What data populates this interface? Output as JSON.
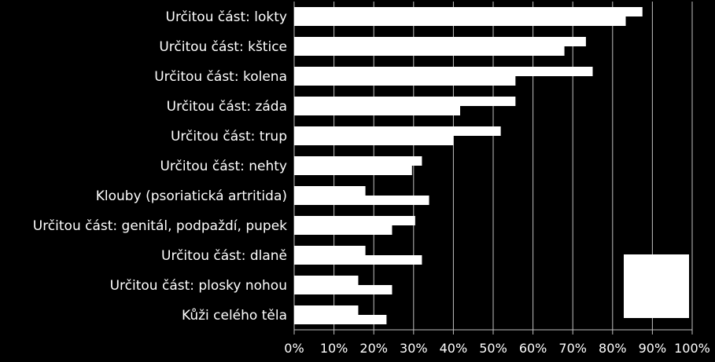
{
  "chart_data": {
    "type": "bar",
    "orientation": "horizontal",
    "categories": [
      "Určitou část: lokty",
      "Určitou část: kštice",
      "Určitou část: kolena",
      "Určitou část: záda",
      "Určitou část: trup",
      "Určitou část: nehty",
      "Klouby (psoriatická artritida)",
      "Určitou část: genitál, podpaždí, pupek",
      "Určitou část: dlaně",
      "Určitou část: plosky nohou",
      "Kůži celého těla"
    ],
    "series": [
      {
        "values": [
          87.5,
          73.3,
          75.0,
          55.6,
          51.9,
          32.1,
          17.9,
          30.4,
          17.9,
          16.1,
          16.1
        ]
      },
      {
        "values": [
          83.3,
          67.9,
          55.6,
          41.7,
          40.0,
          29.6,
          33.9,
          24.6,
          32.1,
          24.6,
          23.2
        ]
      }
    ],
    "x_ticks": [
      "0%",
      "10%",
      "20%",
      "30%",
      "40%",
      "50%",
      "60%",
      "70%",
      "80%",
      "90%",
      "100%"
    ],
    "xlim": [
      0,
      100
    ],
    "grid": true,
    "legend": "bottom-right",
    "colors": {
      "background": "#000000",
      "bars": "#ffffff",
      "gridlines": "#bfbfbf",
      "text": "#ffffff"
    }
  }
}
